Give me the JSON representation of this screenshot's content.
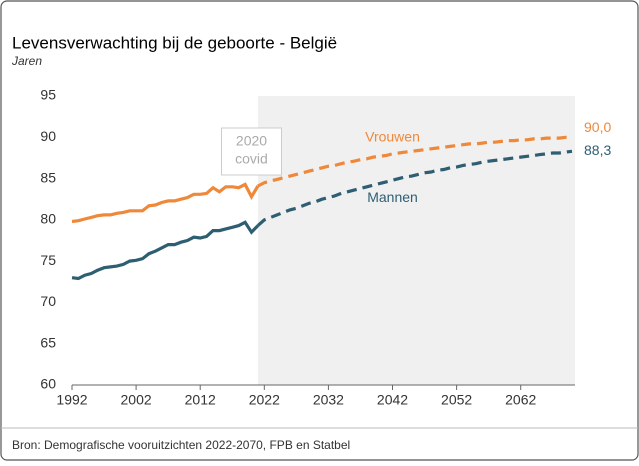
{
  "chart_data": {
    "type": "line",
    "title": "Levensverwachting bij de geboorte - België",
    "subtitle": "Jaren",
    "source": "Bron: Demografische vooruitzichten 2022-2070, FPB en Statbel",
    "annotation": [
      "2020",
      "covid"
    ],
    "projection_start": 2021,
    "xlim": [
      1992,
      2070
    ],
    "xticks": [
      1992,
      2002,
      2012,
      2022,
      2032,
      2042,
      2052,
      2062
    ],
    "ylim": [
      60,
      95
    ],
    "yticks": [
      60,
      65,
      70,
      75,
      80,
      85,
      90,
      95
    ],
    "x": [
      1992,
      1993,
      1994,
      1995,
      1996,
      1997,
      1998,
      1999,
      2000,
      2001,
      2002,
      2003,
      2004,
      2005,
      2006,
      2007,
      2008,
      2009,
      2010,
      2011,
      2012,
      2013,
      2014,
      2015,
      2016,
      2017,
      2018,
      2019,
      2020,
      2021,
      2022,
      2023,
      2024,
      2025,
      2026,
      2027,
      2028,
      2029,
      2030,
      2031,
      2032,
      2033,
      2034,
      2035,
      2036,
      2037,
      2038,
      2039,
      2040,
      2041,
      2042,
      2043,
      2044,
      2045,
      2046,
      2047,
      2048,
      2049,
      2050,
      2051,
      2052,
      2053,
      2054,
      2055,
      2056,
      2057,
      2058,
      2059,
      2060,
      2061,
      2062,
      2063,
      2064,
      2065,
      2066,
      2067,
      2068,
      2069,
      2070
    ],
    "series": [
      {
        "name": "Vrouwen",
        "color": "#f0883a",
        "end_label": "90,0",
        "values": [
          79.8,
          79.9,
          80.1,
          80.3,
          80.5,
          80.6,
          80.6,
          80.8,
          80.9,
          81.1,
          81.1,
          81.1,
          81.7,
          81.8,
          82.1,
          82.3,
          82.3,
          82.5,
          82.7,
          83.1,
          83.1,
          83.2,
          83.9,
          83.4,
          84.0,
          84.0,
          83.9,
          84.3,
          82.8,
          84.1,
          84.5,
          84.7,
          84.9,
          85.1,
          85.3,
          85.5,
          85.7,
          85.9,
          86.1,
          86.3,
          86.5,
          86.6,
          86.8,
          87.0,
          87.1,
          87.3,
          87.4,
          87.6,
          87.7,
          87.8,
          88.0,
          88.1,
          88.2,
          88.3,
          88.4,
          88.5,
          88.6,
          88.7,
          88.8,
          88.9,
          89.0,
          89.1,
          89.2,
          89.2,
          89.3,
          89.4,
          89.4,
          89.5,
          89.6,
          89.6,
          89.7,
          89.7,
          89.8,
          89.8,
          89.9,
          89.9,
          89.9,
          90.0,
          90.0
        ]
      },
      {
        "name": "Mannen",
        "color": "#2e5e72",
        "end_label": "88,3",
        "values": [
          73.0,
          72.9,
          73.3,
          73.5,
          73.9,
          74.2,
          74.3,
          74.4,
          74.6,
          75.0,
          75.1,
          75.3,
          75.9,
          76.2,
          76.6,
          77.0,
          77.0,
          77.3,
          77.5,
          77.9,
          77.8,
          78.0,
          78.7,
          78.7,
          78.9,
          79.1,
          79.3,
          79.7,
          78.5,
          79.3,
          80.0,
          80.3,
          80.6,
          80.9,
          81.2,
          81.4,
          81.7,
          82.0,
          82.2,
          82.5,
          82.7,
          82.9,
          83.2,
          83.4,
          83.6,
          83.8,
          84.0,
          84.2,
          84.4,
          84.6,
          84.8,
          85.0,
          85.2,
          85.3,
          85.5,
          85.7,
          85.8,
          86.0,
          86.1,
          86.3,
          86.4,
          86.6,
          86.7,
          86.8,
          87.0,
          87.1,
          87.2,
          87.3,
          87.4,
          87.5,
          87.6,
          87.7,
          87.8,
          87.9,
          88.0,
          88.1,
          88.1,
          88.2,
          88.3
        ]
      }
    ]
  }
}
